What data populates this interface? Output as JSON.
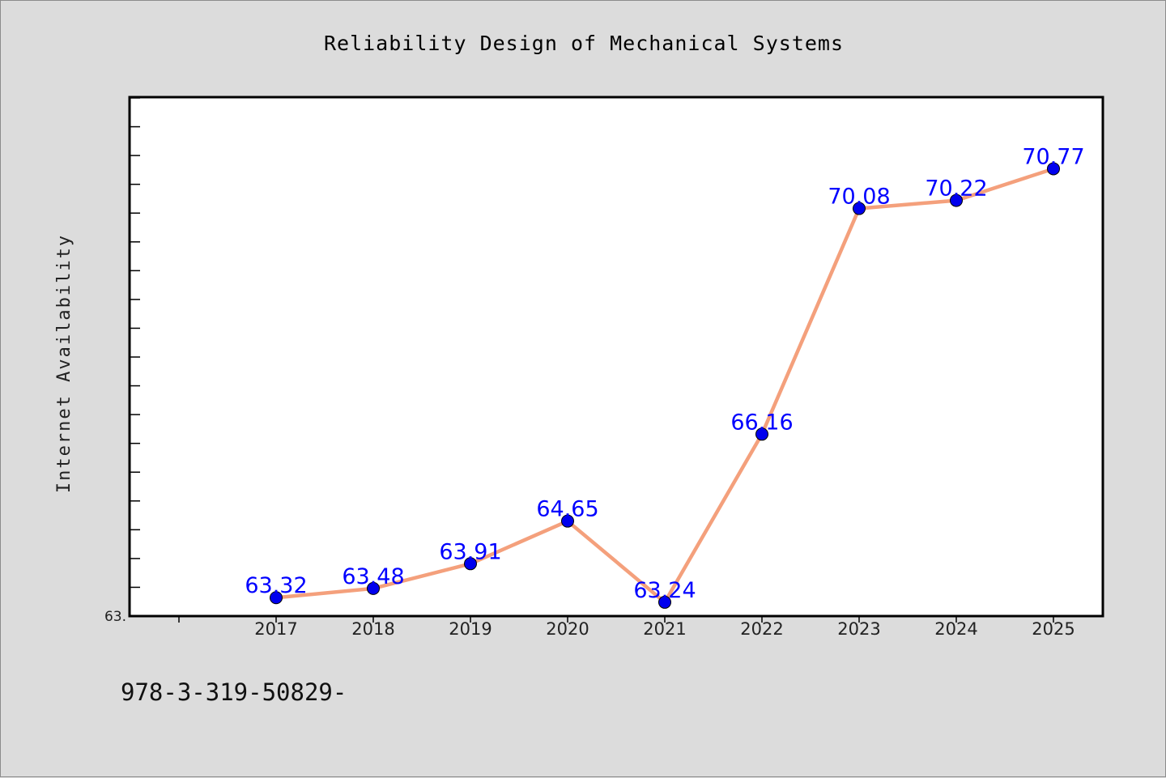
{
  "chart_data": {
    "type": "line",
    "title": "Reliability Design of Mechanical Systems",
    "xlabel": "",
    "ylabel": "Internet Availability",
    "categories": [
      "2017",
      "2018",
      "2019",
      "2020",
      "2021",
      "2022",
      "2023",
      "2024",
      "2025"
    ],
    "series": [
      {
        "values": [
          63.32,
          63.48,
          63.91,
          64.65,
          63.24,
          66.16,
          70.08,
          70.22,
          70.77
        ]
      }
    ],
    "data_labels": [
      "63.32",
      "63.48",
      "63.91",
      "64.65",
      "63.24",
      "66.16",
      "70.08",
      "70.22",
      "70.77"
    ],
    "ylim": [
      63.0,
      72.0
    ],
    "y_tick_label": "63.",
    "grid": false,
    "legend": "none",
    "colors": {
      "line": "#f4a07c",
      "marker": "#0000ee",
      "data_label": "#0000ff",
      "plot_background": "#ffffff",
      "figure_background": "#dcdcdc"
    }
  },
  "footer_text": "978-3-319-50829-"
}
